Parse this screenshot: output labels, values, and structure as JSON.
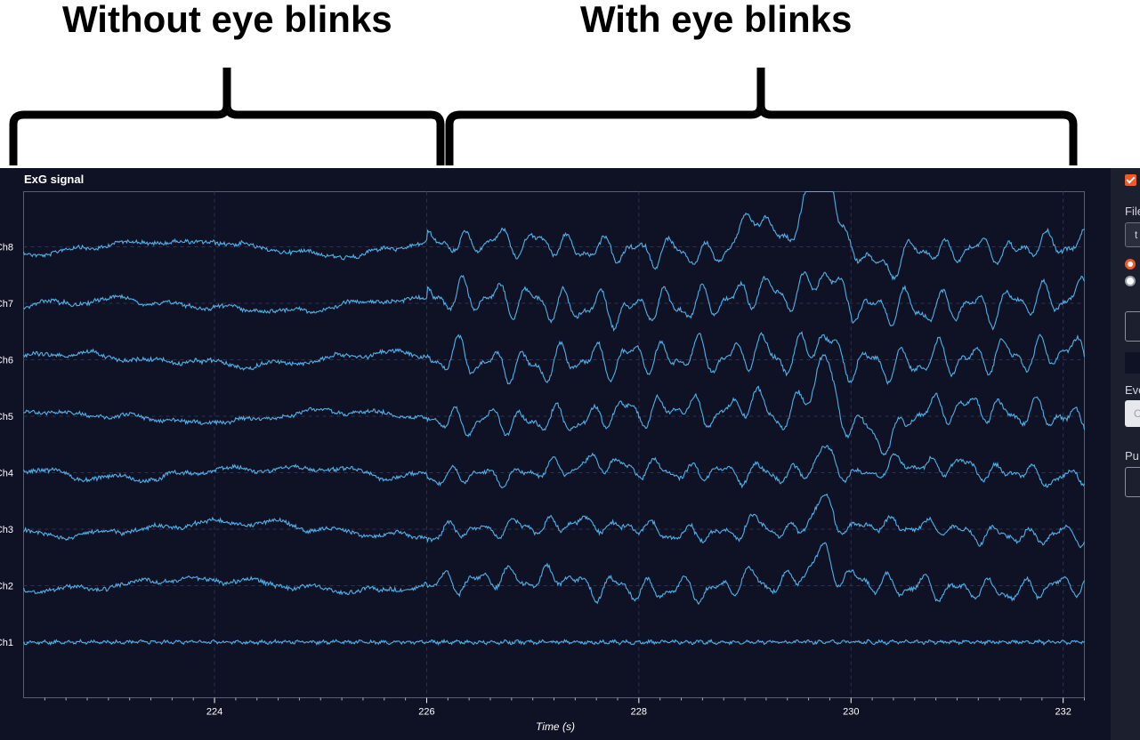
{
  "annotations": {
    "left_label": "Without eye blinks",
    "right_label": "With eye blinks"
  },
  "chart_data": {
    "type": "line",
    "title": "ExG signal",
    "xlabel": "Time (s)",
    "xlim": [
      222.2,
      232.2
    ],
    "x_ticks": [
      224,
      226,
      228,
      230,
      232
    ],
    "grid": true,
    "channels": [
      "Ch8",
      "Ch7",
      "Ch6",
      "Ch5",
      "Ch4",
      "Ch3",
      "Ch2",
      "Ch1"
    ],
    "blink_times": [
      229.1,
      229.6,
      229.75
    ],
    "blink_onset": 226.0,
    "color": "#4fb0e8"
  },
  "sidebar": {
    "file_label": "File",
    "file_value": "t",
    "events_label": "Eve",
    "events_value": "C",
    "push_label": "Pu"
  },
  "colors": {
    "app_bg": "#0f1224",
    "sidebar_bg": "#1c1f2e",
    "accent": "#f05a28",
    "trace": "#4fb0e8"
  }
}
